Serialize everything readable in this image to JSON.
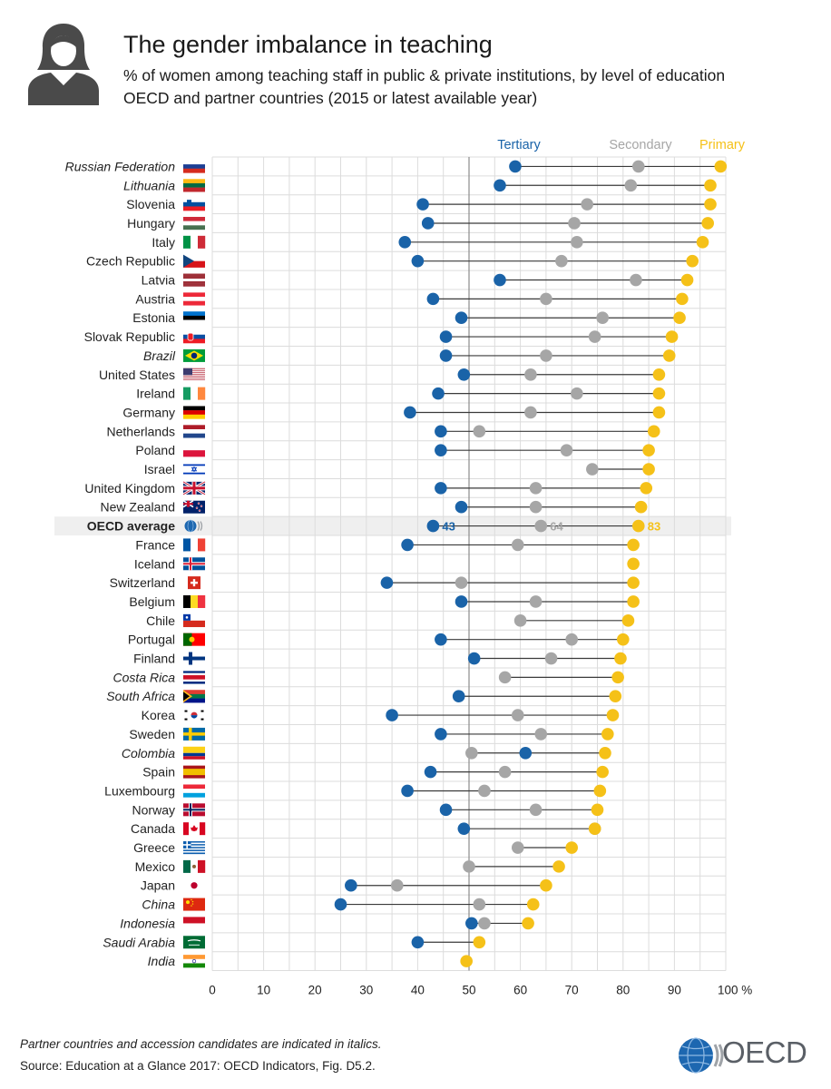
{
  "header": {
    "title": "The gender imbalance in teaching",
    "subtitle_line1": "% of women among teaching staff in public & private institutions, by level of education",
    "subtitle_line2": "OECD and partner countries (2015 or latest available year)",
    "icon": "woman-silhouette-icon"
  },
  "footer": {
    "footnote": "Partner countries and accession candidates are indicated in italics.",
    "source": "Source: Education at a Glance 2017: OECD Indicators, Fig. D5.2.",
    "logo_text": "OECD",
    "logo_icon": "oecd-globe-icon"
  },
  "chart_data": {
    "type": "dot-range",
    "xlim": [
      0,
      100
    ],
    "x_ticks": [
      "0",
      "10",
      "20",
      "30",
      "40",
      "50",
      "60",
      "70",
      "80",
      "90",
      "100 %"
    ],
    "reference_line": 50,
    "grid": true,
    "legend_placement": "top-right",
    "series": [
      {
        "key": "tertiary",
        "name": "Tertiary",
        "color": "#1a63a8"
      },
      {
        "key": "secondary",
        "name": "Secondary",
        "color": "#a6a6a6"
      },
      {
        "key": "primary",
        "name": "Primary",
        "color": "#f5c118"
      }
    ],
    "countries": [
      {
        "name": "Russian Federation",
        "italic": true,
        "flag": "russia-flag-icon",
        "tertiary": 59,
        "secondary": 83,
        "primary": 99
      },
      {
        "name": "Lithuania",
        "italic": true,
        "flag": "lithuania-flag-icon",
        "tertiary": 56,
        "secondary": 81.5,
        "primary": 97
      },
      {
        "name": "Slovenia",
        "italic": false,
        "flag": "slovenia-flag-icon",
        "tertiary": 41,
        "secondary": 73,
        "primary": 97
      },
      {
        "name": "Hungary",
        "italic": false,
        "flag": "hungary-flag-icon",
        "tertiary": 42,
        "secondary": 70.5,
        "primary": 96.5
      },
      {
        "name": "Italy",
        "italic": false,
        "flag": "italy-flag-icon",
        "tertiary": 37.5,
        "secondary": 71,
        "primary": 95.5
      },
      {
        "name": "Czech Republic",
        "italic": false,
        "flag": "czech-flag-icon",
        "tertiary": 40,
        "secondary": 68,
        "primary": 93.5
      },
      {
        "name": "Latvia",
        "italic": false,
        "flag": "latvia-flag-icon",
        "tertiary": 56,
        "secondary": 82.5,
        "primary": 92.5
      },
      {
        "name": "Austria",
        "italic": false,
        "flag": "austria-flag-icon",
        "tertiary": 43,
        "secondary": 65,
        "primary": 91.5
      },
      {
        "name": "Estonia",
        "italic": false,
        "flag": "estonia-flag-icon",
        "tertiary": 48.5,
        "secondary": 76,
        "primary": 91
      },
      {
        "name": "Slovak Republic",
        "italic": false,
        "flag": "slovakia-flag-icon",
        "tertiary": 45.5,
        "secondary": 74.5,
        "primary": 89.5
      },
      {
        "name": "Brazil",
        "italic": true,
        "flag": "brazil-flag-icon",
        "tertiary": 45.5,
        "secondary": 65,
        "primary": 89
      },
      {
        "name": "United States",
        "italic": false,
        "flag": "usa-flag-icon",
        "tertiary": 49,
        "secondary": 62,
        "primary": 87
      },
      {
        "name": "Ireland",
        "italic": false,
        "flag": "ireland-flag-icon",
        "tertiary": 44,
        "secondary": 71,
        "primary": 87
      },
      {
        "name": "Germany",
        "italic": false,
        "flag": "germany-flag-icon",
        "tertiary": 38.5,
        "secondary": 62,
        "primary": 87
      },
      {
        "name": "Netherlands",
        "italic": false,
        "flag": "netherlands-flag-icon",
        "tertiary": 44.5,
        "secondary": 52,
        "primary": 86
      },
      {
        "name": "Poland",
        "italic": false,
        "flag": "poland-flag-icon",
        "tertiary": 44.5,
        "secondary": 69,
        "primary": 85
      },
      {
        "name": "Israel",
        "italic": false,
        "flag": "israel-flag-icon",
        "tertiary": null,
        "secondary": 74,
        "primary": 85
      },
      {
        "name": "United Kingdom",
        "italic": false,
        "flag": "uk-flag-icon",
        "tertiary": 44.5,
        "secondary": 63,
        "primary": 84.5
      },
      {
        "name": "New Zealand",
        "italic": false,
        "flag": "new-zealand-flag-icon",
        "tertiary": 48.5,
        "secondary": 63,
        "primary": 83.5
      },
      {
        "name": "OECD average",
        "italic": false,
        "bold": true,
        "average": true,
        "flag": "oecd-globe-icon",
        "tertiary": 43,
        "secondary": 64,
        "primary": 83,
        "labels": {
          "tertiary": "43",
          "secondary": "64",
          "primary": "83"
        }
      },
      {
        "name": "France",
        "italic": false,
        "flag": "france-flag-icon",
        "tertiary": 38,
        "secondary": 59.5,
        "primary": 82
      },
      {
        "name": "Iceland",
        "italic": false,
        "flag": "iceland-flag-icon",
        "tertiary": null,
        "secondary": null,
        "primary": 82
      },
      {
        "name": "Switzerland",
        "italic": false,
        "flag": "switzerland-flag-icon",
        "tertiary": 34,
        "secondary": 48.5,
        "primary": 82
      },
      {
        "name": "Belgium",
        "italic": false,
        "flag": "belgium-flag-icon",
        "tertiary": 48.5,
        "secondary": 63,
        "primary": 82
      },
      {
        "name": "Chile",
        "italic": false,
        "flag": "chile-flag-icon",
        "tertiary": null,
        "secondary": 60,
        "primary": 81
      },
      {
        "name": "Portugal",
        "italic": false,
        "flag": "portugal-flag-icon",
        "tertiary": 44.5,
        "secondary": 70,
        "primary": 80
      },
      {
        "name": "Finland",
        "italic": false,
        "flag": "finland-flag-icon",
        "tertiary": 51,
        "secondary": 66,
        "primary": 79.5
      },
      {
        "name": "Costa Rica",
        "italic": true,
        "flag": "costa-rica-flag-icon",
        "tertiary": null,
        "secondary": 57,
        "primary": 79
      },
      {
        "name": "South Africa",
        "italic": true,
        "flag": "south-africa-flag-icon",
        "tertiary": 48,
        "secondary": null,
        "primary": 78.5
      },
      {
        "name": "Korea",
        "italic": false,
        "flag": "korea-flag-icon",
        "tertiary": 35,
        "secondary": 59.5,
        "primary": 78
      },
      {
        "name": "Sweden",
        "italic": false,
        "flag": "sweden-flag-icon",
        "tertiary": 44.5,
        "secondary": 64,
        "primary": 77
      },
      {
        "name": "Colombia",
        "italic": true,
        "flag": "colombia-flag-icon",
        "tertiary": 61,
        "secondary": 50.5,
        "primary": 76.5
      },
      {
        "name": "Spain",
        "italic": false,
        "flag": "spain-flag-icon",
        "tertiary": 42.5,
        "secondary": 57,
        "primary": 76
      },
      {
        "name": "Luxembourg",
        "italic": false,
        "flag": "luxembourg-flag-icon",
        "tertiary": 38,
        "secondary": 53,
        "primary": 75.5
      },
      {
        "name": "Norway",
        "italic": false,
        "flag": "norway-flag-icon",
        "tertiary": 45.5,
        "secondary": 63,
        "primary": 75
      },
      {
        "name": "Canada",
        "italic": false,
        "flag": "canada-flag-icon",
        "tertiary": 49,
        "secondary": 74.5,
        "primary": 74.5
      },
      {
        "name": "Greece",
        "italic": false,
        "flag": "greece-flag-icon",
        "tertiary": null,
        "secondary": 59.5,
        "primary": 70
      },
      {
        "name": "Mexico",
        "italic": false,
        "flag": "mexico-flag-icon",
        "tertiary": null,
        "secondary": 50,
        "primary": 67.5
      },
      {
        "name": "Japan",
        "italic": false,
        "flag": "japan-flag-icon",
        "tertiary": 27,
        "secondary": 36,
        "primary": 65
      },
      {
        "name": "China",
        "italic": true,
        "flag": "china-flag-icon",
        "tertiary": 25,
        "secondary": 52,
        "primary": 62.5
      },
      {
        "name": "Indonesia",
        "italic": true,
        "flag": "indonesia-flag-icon",
        "tertiary": 50.5,
        "secondary": 53,
        "primary": 61.5
      },
      {
        "name": "Saudi Arabia",
        "italic": true,
        "flag": "saudi-arabia-flag-icon",
        "tertiary": 40,
        "secondary": null,
        "primary": 52
      },
      {
        "name": "India",
        "italic": true,
        "flag": "india-flag-icon",
        "tertiary": null,
        "secondary": null,
        "primary": 49.5
      }
    ]
  }
}
